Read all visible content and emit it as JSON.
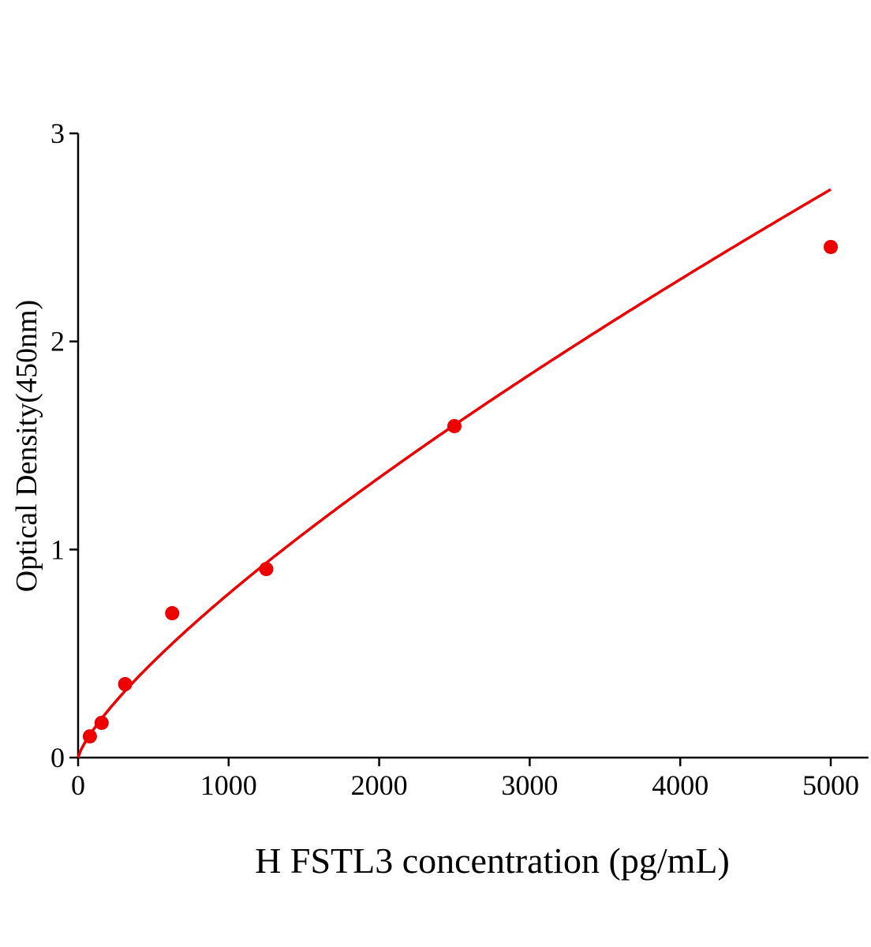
{
  "chart_data": {
    "type": "scatter",
    "title": "",
    "xlabel": "H FSTL3 concentration (pg/mL)",
    "ylabel": "Optical Density(450nm)",
    "xlim": [
      0,
      5250
    ],
    "ylim": [
      0,
      3
    ],
    "xticks": [
      0,
      1000,
      2000,
      3000,
      4000,
      5000
    ],
    "yticks": [
      0,
      1,
      2,
      3
    ],
    "grid": false,
    "color": "#ee0000",
    "series": [
      {
        "x": [
          78.125,
          156.25,
          312.5,
          625,
          1250,
          2500,
          5000
        ],
        "y": [
          0.102,
          0.167,
          0.353,
          0.694,
          0.906,
          1.593,
          2.454
        ]
      }
    ],
    "fit_curve": "power"
  }
}
